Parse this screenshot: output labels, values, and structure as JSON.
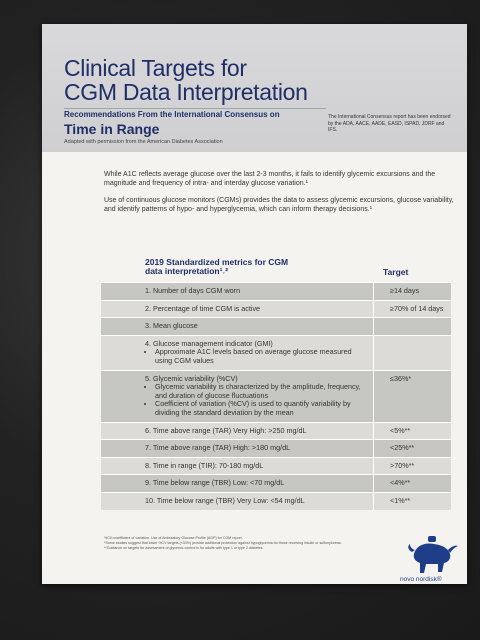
{
  "header": {
    "title_line1": "Clinical Targets for",
    "title_line2": "CGM Data Interpretation",
    "subtitle": "Recommendations From the International Consensus on",
    "tir": "Time in Range",
    "adapted": "Adapted with permission from the American Diabetes Association",
    "endorse": "The International Consensus report has been endorsed by the ADA, AACE, AADE, EASD, ISPAD, JDRF and IFS."
  },
  "body": {
    "para1": "While A1C reflects average glucose over the last 2-3 months, it fails to identify glycemic excursions and the magnitude and frequency of intra- and interday glucose variation.¹",
    "para2": "Use of continuous glucose monitors (CGMs) provides the data to assess glycemic excursions, glucose variability, and identify patterns of hypo- and hyperglycemia, which can inform therapy decisions.¹"
  },
  "table": {
    "heading": "2019 Standardized metrics for CGM data interpretation¹˒²",
    "target_heading": "Target",
    "rows": [
      {
        "metric": "1. Number of days CGM worn",
        "bullets": [],
        "target": "≥14 days"
      },
      {
        "metric": "2. Percentage of time CGM is active",
        "bullets": [],
        "target": "≥70% of 14 days"
      },
      {
        "metric": "3. Mean glucose",
        "bullets": [],
        "target": ""
      },
      {
        "metric": "4. Glucose management indicator (GMI)",
        "bullets": [
          "Approximate A1C levels based on average glucose measured using CGM values"
        ],
        "target": ""
      },
      {
        "metric": "5. Glycemic variability (%CV)",
        "bullets": [
          "Glycemic variability is characterized by the amplitude, frequency, and duration of glucose fluctuations",
          "Coefficient of variation (%CV) is used to quantify variability by dividing the standard deviation by the mean"
        ],
        "target": "≤36%*"
      },
      {
        "metric": "6. Time above range (TAR) Very High: >250 mg/dL",
        "bullets": [],
        "target": "<5%**"
      },
      {
        "metric": "7. Time above range (TAR) High: >180 mg/dL",
        "bullets": [],
        "target": "<25%**"
      },
      {
        "metric": "8. Time in range (TIR): 70-180 mg/dL",
        "bullets": [],
        "target": ">70%**"
      },
      {
        "metric": "9. Time below range (TBR) Low: <70 mg/dL",
        "bullets": [],
        "target": "<4%**"
      },
      {
        "metric": "10. Time below range (TBR) Very Low: <54 mg/dL",
        "bullets": [],
        "target": "<1%**"
      }
    ]
  },
  "footnotes": [
    "%CV=coefficient of variation. Use of Ambulatory Glucose Profile (AGP) for CGM report.",
    "*Some studies suggest that lower %CV targets (<33%) provide additional protection against hypoglycemia for those receiving insulin or sulfonylureas.",
    "**Guidance on targets for assessment of glycemic control is for adults with type 1 or type 2 diabetes."
  ],
  "brand": {
    "name": "novo nordisk®",
    "color": "#1f3e8a"
  }
}
